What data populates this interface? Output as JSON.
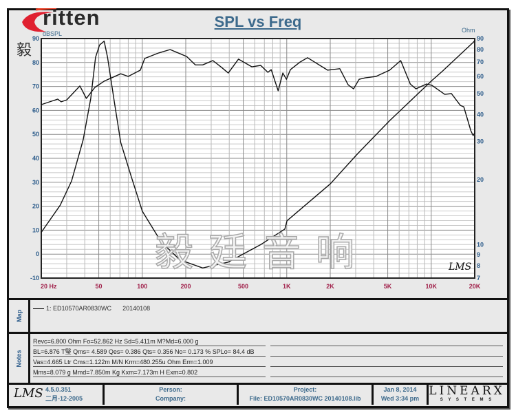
{
  "brand": {
    "logo_text": "ritten",
    "logo_initial": "E",
    "logo_cn": "毅廷音响",
    "watermark": "毅廷音响"
  },
  "title": "SPL vs Freq",
  "chart_data": {
    "type": "line",
    "title": "SPL vs Freq",
    "x_scale": "log",
    "xlim": [
      20,
      20000
    ],
    "x_tick_labels": [
      {
        "v": 20,
        "t": "20  Hz"
      },
      {
        "v": 50,
        "t": "50"
      },
      {
        "v": 100,
        "t": "100"
      },
      {
        "v": 200,
        "t": "200"
      },
      {
        "v": 500,
        "t": "500"
      },
      {
        "v": 1000,
        "t": "1K"
      },
      {
        "v": 2000,
        "t": "2K"
      },
      {
        "v": 5000,
        "t": "5K"
      },
      {
        "v": 10000,
        "t": "10K"
      },
      {
        "v": 20000,
        "t": "20K"
      }
    ],
    "y_left": {
      "label": "dBSPL",
      "lim": [
        -10,
        90
      ],
      "ticks": [
        90,
        80,
        70,
        60,
        50,
        40,
        30,
        20,
        10,
        0,
        -10
      ]
    },
    "y_right": {
      "label": "Ohm",
      "scale": "log",
      "lim": [
        7,
        90
      ],
      "ticks": [
        90,
        80,
        70,
        60,
        50,
        40,
        30,
        20,
        10,
        9,
        8,
        7
      ]
    },
    "grid": true,
    "series": [
      {
        "axis": "left",
        "points": [
          [
            20,
            62.4
          ],
          [
            26,
            64.7
          ],
          [
            27.5,
            63.6
          ],
          [
            30,
            64.4
          ],
          [
            37,
            70.2
          ],
          [
            41,
            65
          ],
          [
            47,
            69.6
          ],
          [
            54.5,
            72.2
          ],
          [
            71,
            75.3
          ],
          [
            80,
            74.2
          ],
          [
            97,
            76.8
          ],
          [
            104,
            81.7
          ],
          [
            130,
            84
          ],
          [
            156,
            85.4
          ],
          [
            203,
            82.5
          ],
          [
            233,
            79
          ],
          [
            262,
            79
          ],
          [
            308,
            80.8
          ],
          [
            350,
            78.2
          ],
          [
            394,
            75.6
          ],
          [
            463,
            81.4
          ],
          [
            574,
            78.2
          ],
          [
            660,
            78.8
          ],
          [
            741,
            75.9
          ],
          [
            781,
            77
          ],
          [
            872,
            68.2
          ],
          [
            940,
            75.6
          ],
          [
            995,
            73
          ],
          [
            1060,
            77
          ],
          [
            1237,
            80.2
          ],
          [
            1393,
            82
          ],
          [
            1916,
            76.8
          ],
          [
            2330,
            77.4
          ],
          [
            2660,
            70.7
          ],
          [
            2900,
            69
          ],
          [
            3170,
            73
          ],
          [
            3500,
            73.6
          ],
          [
            4150,
            74.2
          ],
          [
            5160,
            76.8
          ],
          [
            6150,
            80.8
          ],
          [
            7170,
            71
          ],
          [
            7840,
            69
          ],
          [
            9250,
            71
          ],
          [
            10100,
            70.5
          ],
          [
            12400,
            66.7
          ],
          [
            13800,
            67
          ],
          [
            15900,
            62.1
          ],
          [
            16800,
            61.5
          ],
          [
            18800,
            51.5
          ],
          [
            19500,
            49.5
          ],
          [
            20000,
            50.6
          ]
        ]
      },
      {
        "axis": "right",
        "points": [
          [
            20,
            11.4
          ],
          [
            27,
            15.2
          ],
          [
            32.4,
            19.7
          ],
          [
            39,
            30.6
          ],
          [
            44,
            47.5
          ],
          [
            47.5,
            73.7
          ],
          [
            50.6,
            84
          ],
          [
            54.5,
            87.5
          ],
          [
            57.5,
            73.7
          ],
          [
            64,
            46
          ],
          [
            71,
            29.7
          ],
          [
            84,
            20.6
          ],
          [
            100,
            14.3
          ],
          [
            135,
            10.3
          ],
          [
            182,
            8.5
          ],
          [
            262,
            7.8
          ],
          [
            394,
            8.3
          ],
          [
            660,
            10
          ],
          [
            970,
            11.8
          ],
          [
            1005,
            12.9
          ],
          [
            2000,
            19.1
          ],
          [
            3100,
            26.4
          ],
          [
            5160,
            37.5
          ],
          [
            10100,
            57.5
          ],
          [
            12000,
            63.7
          ],
          [
            19500,
            86.4
          ],
          [
            20000,
            88
          ]
        ]
      }
    ],
    "curve_color": "#111111",
    "left_tick_color": "#2b5b8a",
    "x_tick_color": "#a0204a"
  },
  "plot_signature": "LMS",
  "map": {
    "label": "Map",
    "legend_entry": "1: ED10570AR0830WC",
    "legend_date": "20140108"
  },
  "notes": {
    "label": "Notes",
    "lines": [
      "Revc=6.800 Ohm  Fo=52.862 Hz  Sd=5.411m M?Md=6.000 g",
      "BL=6.876 T瑿  Qms= 4.589  Qes= 0.386  Qts= 0.356  No= 0.173 %  SPLo= 84.4 dB",
      "Vas=4.665 Ltr  Cms=1.122m M/N  Krm=480.255u Ohm  Erm=1.009",
      "Mms=8.079 g  Mmd=7.850m Kg  Kxm=7.173m H  Exm=0.802"
    ]
  },
  "footer": {
    "lms_logo": "LMS",
    "version": "4.5.0.351",
    "build_date": "二月-12-2005",
    "person_label": "Person:",
    "company_label": "Company:",
    "project_label": "Project:",
    "file": "File: ED10570AR0830WC  20140108.lib",
    "date": "Jan  8, 2014",
    "time": "Wed  3:34 pm",
    "linearx": "LINEARX",
    "linearx_sub": "S Y S T E M S"
  }
}
